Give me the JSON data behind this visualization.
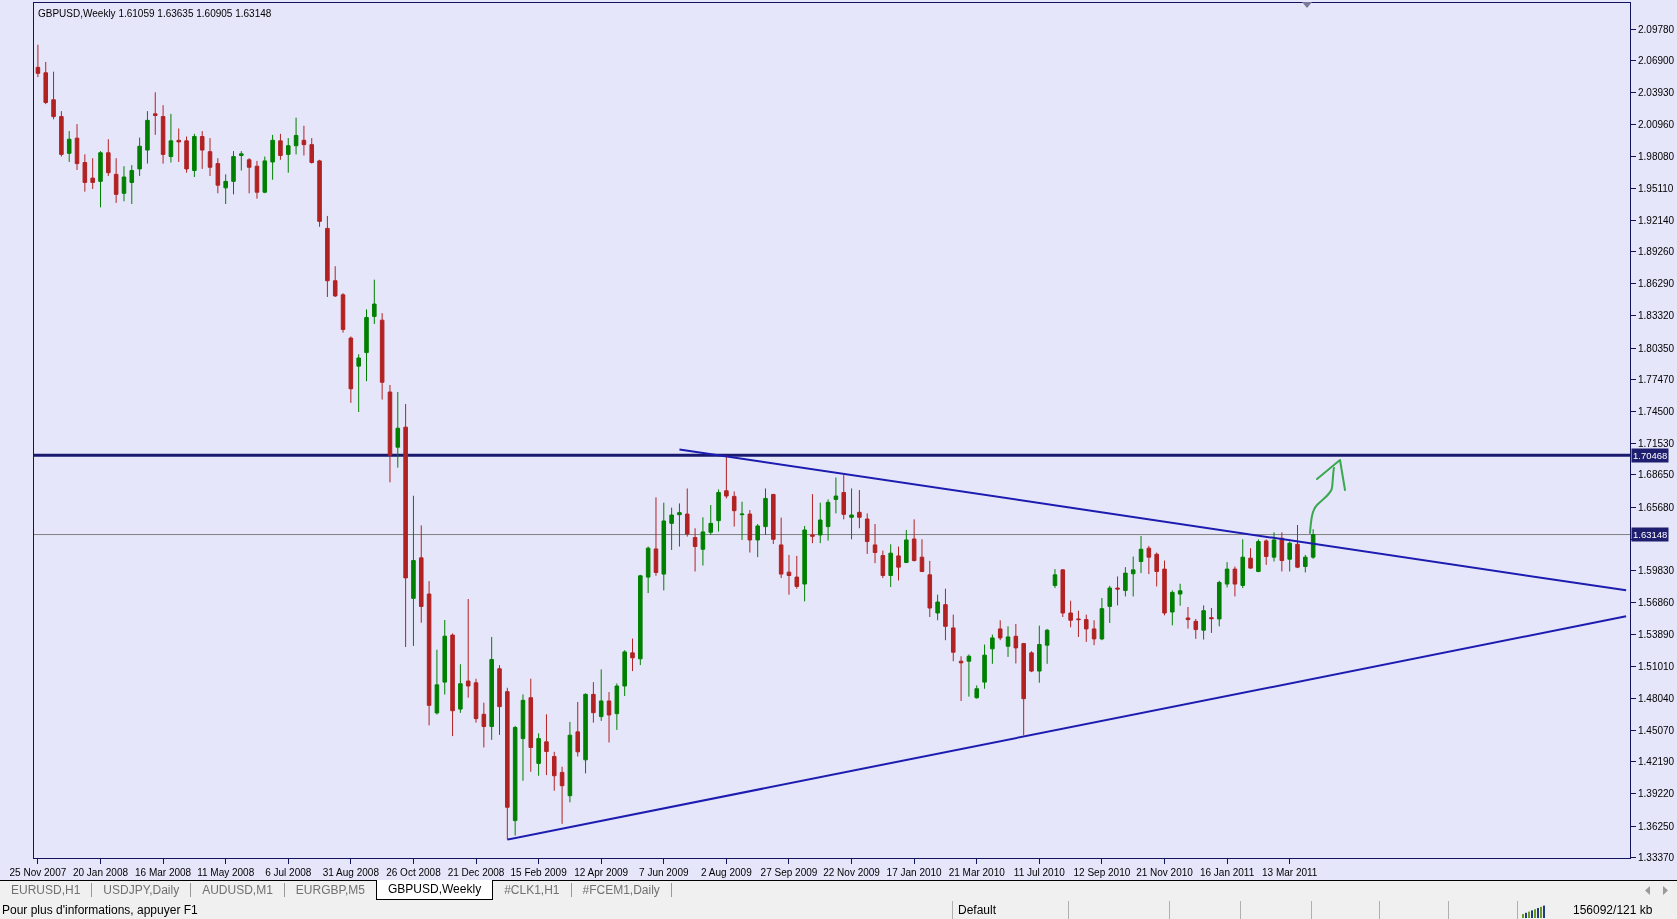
{
  "chart_data": {
    "type": "candlestick",
    "title": "GBPUSD,Weekly 1.61059 1.63635 1.60905 1.63148",
    "categories": [
      "25 Nov 2007",
      null,
      null,
      null,
      null,
      null,
      null,
      null,
      "20 Jan 2008",
      null,
      null,
      null,
      null,
      null,
      null,
      null,
      "16 Mar 2008",
      null,
      null,
      null,
      null,
      null,
      null,
      null,
      "11 May 2008",
      null,
      null,
      null,
      null,
      null,
      null,
      null,
      "6 Jul 2008",
      null,
      null,
      null,
      null,
      null,
      null,
      null,
      "31 Aug 2008",
      null,
      null,
      null,
      null,
      null,
      null,
      null,
      "26 Oct 2008",
      null,
      null,
      null,
      null,
      null,
      null,
      null,
      "21 Dec 2008",
      null,
      null,
      null,
      null,
      null,
      null,
      null,
      "15 Feb 2009",
      null,
      null,
      null,
      null,
      null,
      null,
      null,
      "12 Apr 2009",
      null,
      null,
      null,
      null,
      null,
      null,
      null,
      "7 Jun 2009",
      null,
      null,
      null,
      null,
      null,
      null,
      null,
      "2 Aug 2009",
      null,
      null,
      null,
      null,
      null,
      null,
      null,
      "27 Sep 2009",
      null,
      null,
      null,
      null,
      null,
      null,
      null,
      "22 Nov 2009",
      null,
      null,
      null,
      null,
      null,
      null,
      null,
      "17 Jan 2010",
      null,
      null,
      null,
      null,
      null,
      null,
      null,
      "21 Mar 2010",
      null,
      null,
      null,
      null,
      null,
      null,
      null,
      "11 Jul 2010",
      null,
      null,
      null,
      null,
      null,
      null,
      null,
      "12 Sep 2010",
      null,
      null,
      null,
      null,
      null,
      null,
      null,
      "21 Nov 2010",
      null,
      null,
      null,
      null,
      null,
      null,
      null,
      "16 Jan 2011",
      null,
      null,
      null,
      null,
      null,
      null,
      null,
      "13 Mar 2011",
      null,
      null,
      null,
      null,
      null,
      null,
      null,
      null,
      null,
      null,
      null,
      null,
      null,
      null,
      null,
      null,
      null,
      null,
      null,
      null,
      null,
      null,
      null,
      null,
      null,
      null,
      null,
      null,
      null,
      null,
      null,
      null,
      null,
      null,
      null,
      null,
      null,
      null,
      null,
      null,
      null,
      null,
      null
    ],
    "ohlc": [
      [
        2.0626,
        2.0835,
        2.0536,
        2.0571
      ],
      [
        2.0576,
        2.0676,
        2.0287,
        2.0302
      ],
      [
        2.0327,
        2.0586,
        2.0147,
        2.0172
      ],
      [
        2.0172,
        2.0222,
        1.9803,
        1.9823
      ],
      [
        1.9833,
        2.0038,
        1.9753,
        1.9963
      ],
      [
        1.9973,
        2.0102,
        1.9679,
        1.9738
      ],
      [
        1.9748,
        1.9823,
        1.9479,
        1.9564
      ],
      [
        1.9604,
        1.9788,
        1.9504,
        1.9564
      ],
      [
        1.9574,
        1.9853,
        1.9335,
        1.9838
      ],
      [
        1.9838,
        1.9963,
        1.9624,
        1.9654
      ],
      [
        1.9639,
        1.9788,
        1.9375,
        1.9454
      ],
      [
        1.9464,
        1.9714,
        1.939,
        1.9614
      ],
      [
        1.9564,
        1.9724,
        1.9365,
        1.9674
      ],
      [
        1.9689,
        1.9978,
        1.9624,
        1.9898
      ],
      [
        1.9863,
        2.0222,
        1.9738,
        2.0137
      ],
      [
        2.0197,
        2.0396,
        2.0003,
        2.0182
      ],
      [
        2.0172,
        2.0277,
        1.9738,
        1.9823
      ],
      [
        1.9803,
        2.0197,
        1.9748,
        1.9948
      ],
      [
        1.9953,
        2.0062,
        1.9753,
        1.9938
      ],
      [
        1.9948,
        1.9988,
        1.9654,
        1.9689
      ],
      [
        1.9674,
        2.0013,
        1.9614,
        1.9988
      ],
      [
        1.9988,
        2.0038,
        1.9689,
        1.9863
      ],
      [
        1.9848,
        1.9973,
        1.9624,
        1.9704
      ],
      [
        1.9738,
        1.9788,
        1.9464,
        1.9539
      ],
      [
        1.9514,
        1.9639,
        1.9365,
        1.9574
      ],
      [
        1.9574,
        1.9853,
        1.9454,
        1.9803
      ],
      [
        1.9813,
        1.9853,
        1.9674,
        1.9828
      ],
      [
        1.9773,
        1.9788,
        1.9464,
        1.9704
      ],
      [
        1.9714,
        1.9763,
        1.9414,
        1.9474
      ],
      [
        1.9474,
        1.9803,
        1.9464,
        1.9763
      ],
      [
        1.9753,
        2.0003,
        1.9589,
        1.9953
      ],
      [
        1.9948,
        2.0013,
        1.9773,
        1.9813
      ],
      [
        1.9823,
        1.9973,
        1.9654,
        1.9903
      ],
      [
        1.9903,
        2.0162,
        1.9823,
        1.9998
      ],
      [
        1.9953,
        2.0087,
        1.9813,
        1.9913
      ],
      [
        1.9913,
        1.9973,
        1.9738,
        1.9748
      ],
      [
        1.9763,
        1.9773,
        1.9155,
        1.9205
      ],
      [
        1.914,
        1.9255,
        1.8507,
        1.8657
      ],
      [
        1.8657,
        1.8791,
        1.8507,
        1.8517
      ],
      [
        1.8527,
        1.8542,
        1.8178,
        1.8208
      ],
      [
        1.8128,
        1.8143,
        1.753,
        1.766
      ],
      [
        1.7869,
        1.7979,
        1.7446,
        1.7944
      ],
      [
        1.7994,
        1.8393,
        1.773,
        1.8318
      ],
      [
        1.8328,
        1.8667,
        1.8258,
        1.8442
      ],
      [
        1.8293,
        1.8358,
        1.756,
        1.772
      ],
      [
        1.763,
        1.7695,
        1.6797,
        1.7047
      ],
      [
        1.7121,
        1.763,
        1.6932,
        1.7296
      ],
      [
        1.7306,
        1.752,
        1.5277,
        1.5915
      ],
      [
        1.5726,
        1.6673,
        1.5287,
        1.6075
      ],
      [
        1.61,
        1.6399,
        1.5501,
        1.5651
      ],
      [
        1.5766,
        1.5885,
        1.4554,
        1.4739
      ],
      [
        1.4669,
        1.5252,
        1.4654,
        1.4928
      ],
      [
        1.4953,
        1.5526,
        1.4839,
        1.5377
      ],
      [
        1.5387,
        1.5402,
        1.4455,
        1.4689
      ],
      [
        1.4704,
        1.5118,
        1.4669,
        1.4938
      ],
      [
        1.4963,
        1.572,
        1.4809,
        1.4917
      ],
      [
        1.4947,
        1.4984,
        1.4579,
        1.4616
      ],
      [
        1.4656,
        1.4763,
        1.435,
        1.4543
      ],
      [
        1.4543,
        1.537,
        1.442,
        1.5162
      ],
      [
        1.5076,
        1.511,
        1.4466,
        1.4727
      ],
      [
        1.4865,
        1.4901,
        1.3501,
        1.3798
      ],
      [
        1.3675,
        1.4549,
        1.3537,
        1.4534
      ],
      [
        1.4432,
        1.484,
        1.4043,
        1.4785
      ],
      [
        1.4809,
        1.4984,
        1.4126,
        1.435
      ],
      [
        1.4203,
        1.4481,
        1.4089,
        1.4432
      ],
      [
        1.4402,
        1.4656,
        1.4095,
        1.4313
      ],
      [
        1.4267,
        1.431,
        1.3951,
        1.4089
      ],
      [
        1.412,
        1.4172,
        1.3645,
        1.3997
      ],
      [
        1.3905,
        1.4586,
        1.3844,
        1.4463
      ],
      [
        1.4494,
        1.477,
        1.4267,
        1.431
      ],
      [
        1.4236,
        1.4849,
        1.4111,
        1.484
      ],
      [
        1.484,
        1.4953,
        1.4579,
        1.4671
      ],
      [
        1.4635,
        1.507,
        1.4595,
        1.4779
      ],
      [
        1.4779,
        1.4861,
        1.4396,
        1.465
      ],
      [
        1.4662,
        1.4941,
        1.4512,
        1.4917
      ],
      [
        1.4917,
        1.5248,
        1.4825,
        1.5232
      ],
      [
        1.5223,
        1.5355,
        1.5055,
        1.5177
      ],
      [
        1.5168,
        1.5943,
        1.511,
        1.5934
      ],
      [
        1.5922,
        1.6204,
        1.5775,
        1.6189
      ],
      [
        1.6182,
        1.6658,
        1.5934,
        1.5965
      ],
      [
        1.595,
        1.6609,
        1.5799,
        1.644
      ],
      [
        1.6418,
        1.6563,
        1.6173,
        1.6495
      ],
      [
        1.6498,
        1.6602,
        1.6204,
        1.6517
      ],
      [
        1.6504,
        1.674,
        1.6296,
        1.632
      ],
      [
        1.6287,
        1.6373,
        1.5974,
        1.6204
      ],
      [
        1.6179,
        1.6474,
        1.6029,
        1.6339
      ],
      [
        1.6336,
        1.6587,
        1.6311,
        1.6418
      ],
      [
        1.6443,
        1.6731,
        1.6342,
        1.6703
      ],
      [
        1.6719,
        1.7045,
        1.6648,
        1.667
      ],
      [
        1.6667,
        1.6713,
        1.6388,
        1.6535
      ],
      [
        1.6498,
        1.6618,
        1.6265,
        1.6504
      ],
      [
        1.6504,
        1.6541,
        1.6149,
        1.6265
      ],
      [
        1.6265,
        1.6412,
        1.6106,
        1.6394
      ],
      [
        1.6388,
        1.674,
        1.6311,
        1.6648
      ],
      [
        1.6685,
        1.669,
        1.6228,
        1.6271
      ],
      [
        1.6219,
        1.6471,
        1.5913,
        1.595
      ],
      [
        1.5968,
        1.6127,
        1.576,
        1.5937
      ],
      [
        1.5922,
        1.6118,
        1.5815,
        1.5836
      ],
      [
        1.5858,
        1.6394,
        1.5698,
        1.6357
      ],
      [
        1.6311,
        1.6688,
        1.6235,
        1.6299
      ],
      [
        1.6311,
        1.6609,
        1.6235,
        1.6449
      ],
      [
        1.6388,
        1.6639,
        1.6259,
        1.6612
      ],
      [
        1.6639,
        1.6841,
        1.651,
        1.667
      ],
      [
        1.6703,
        1.6863,
        1.6455,
        1.6501
      ],
      [
        1.6474,
        1.674,
        1.6271,
        1.6495
      ],
      [
        1.652,
        1.6725,
        1.6373,
        1.6474
      ],
      [
        1.6458,
        1.651,
        1.6136,
        1.625
      ],
      [
        1.6219,
        1.6412,
        1.6051,
        1.6149
      ],
      [
        1.6121,
        1.6167,
        1.5913,
        1.5937
      ],
      [
        1.5937,
        1.6225,
        1.583,
        1.6143
      ],
      [
        1.6118,
        1.6204,
        1.5891,
        1.6014
      ],
      [
        1.6057,
        1.6357,
        1.6051,
        1.6265
      ],
      [
        1.6274,
        1.6455,
        1.6066,
        1.6075
      ],
      [
        1.6106,
        1.6271,
        1.5968,
        1.5974
      ],
      [
        1.5943,
        1.6072,
        1.5554,
        1.5637
      ],
      [
        1.5591,
        1.576,
        1.5524,
        1.5692
      ],
      [
        1.5668,
        1.5815,
        1.534,
        1.5468
      ],
      [
        1.5453,
        1.5576,
        1.5146,
        1.5229
      ],
      [
        1.5146,
        1.5192,
        1.4779,
        1.5131
      ],
      [
        1.5146,
        1.5208,
        1.4819,
        1.5192
      ],
      [
        1.4809,
        1.4923,
        1.48,
        1.4892
      ],
      [
        1.4953,
        1.53,
        1.4892,
        1.5202
      ],
      [
        1.526,
        1.5392,
        1.5122,
        1.5361
      ],
      [
        1.5444,
        1.5524,
        1.534,
        1.5361
      ],
      [
        1.5284,
        1.5468,
        1.5186,
        1.537
      ],
      [
        1.5376,
        1.549,
        1.5125,
        1.5269
      ],
      [
        1.5309,
        1.5315,
        1.4463,
        1.48
      ],
      [
        1.5223,
        1.5238,
        1.5045,
        1.5055
      ],
      [
        1.5055,
        1.5474,
        1.4947,
        1.53
      ],
      [
        1.5294,
        1.5444,
        1.5122,
        1.5432
      ],
      [
        1.5845,
        1.5996,
        1.5821,
        1.5943
      ],
      [
        1.5989,
        1.5996,
        1.5554,
        1.5591
      ],
      [
        1.5591,
        1.5704,
        1.5459,
        1.5524
      ],
      [
        1.5536,
        1.5612,
        1.537,
        1.553
      ],
      [
        1.553,
        1.5576,
        1.5324,
        1.5444
      ],
      [
        1.5444,
        1.5524,
        1.5294,
        1.5352
      ],
      [
        1.5352,
        1.5729,
        1.534,
        1.5631
      ],
      [
        1.5652,
        1.5842,
        1.5499,
        1.5821
      ],
      [
        1.5821,
        1.5928,
        1.5661,
        1.5812
      ],
      [
        1.5799,
        1.6014,
        1.5744,
        1.5959
      ],
      [
        1.5953,
        1.6112,
        1.5744,
        1.5989
      ],
      [
        1.6066,
        1.6302,
        1.5959,
        1.6179
      ],
      [
        1.6189,
        1.621,
        1.595,
        1.6106
      ],
      [
        1.6133,
        1.6149,
        1.5836,
        1.5974
      ],
      [
        1.5996,
        1.6075,
        1.5569,
        1.5591
      ],
      [
        1.56,
        1.5799,
        1.5477,
        1.5781
      ],
      [
        1.5766,
        1.5861,
        1.5658,
        1.5796
      ],
      [
        1.5545,
        1.5646,
        1.5447,
        1.553
      ],
      [
        1.5514,
        1.5536,
        1.5352,
        1.5438
      ],
      [
        1.5432,
        1.5661,
        1.5346,
        1.5612
      ],
      [
        1.5548,
        1.5637,
        1.5407,
        1.5539
      ],
      [
        1.5536,
        1.5888,
        1.5468,
        1.5873
      ],
      [
        1.5858,
        1.606,
        1.5827,
        1.5996
      ],
      [
        1.5996,
        1.602,
        1.5744,
        1.5858
      ],
      [
        1.5845,
        1.6271,
        1.5821,
        1.6106
      ],
      [
        1.6097,
        1.6189,
        1.5999,
        1.6005
      ],
      [
        1.5974,
        1.6271,
        1.5968,
        1.625
      ],
      [
        1.6256,
        1.6271,
        1.6035,
        1.6112
      ],
      [
        1.6106,
        1.6336,
        1.6066,
        1.6265
      ],
      [
        1.6281,
        1.6336,
        1.5974,
        1.6075
      ],
      [
        1.6087,
        1.625,
        1.5974,
        1.6235
      ],
      [
        1.6225,
        1.6403,
        1.6005,
        1.6014
      ],
      [
        1.602,
        1.6127,
        1.5965,
        1.6106
      ],
      [
        1.61059,
        1.63635,
        1.60905,
        1.63148
      ],
      null,
      null,
      null,
      null,
      null,
      null,
      null,
      null,
      null,
      null,
      null,
      null,
      null,
      null,
      null,
      null,
      null,
      null,
      null,
      null,
      null,
      null,
      null,
      null,
      null,
      null,
      null,
      null,
      null,
      null,
      null,
      null,
      null,
      null,
      null,
      null,
      null,
      null,
      null,
      null
    ],
    "colors": [
      "#b22222",
      "#b22222",
      "#b22222",
      "#b22222",
      "#008000",
      "#b22222",
      "#b22222",
      "#b22222",
      "#008000",
      "#b22222",
      "#b22222",
      "#008000",
      "#008000",
      "#008000",
      "#008000",
      "#b22222",
      "#b22222",
      "#008000",
      "#b22222",
      "#b22222",
      "#008000",
      "#b22222",
      "#b22222",
      "#b22222",
      "#008000",
      "#008000",
      "#008000",
      "#b22222",
      "#b22222",
      "#008000",
      "#008000",
      "#b22222",
      "#008000",
      "#008000",
      "#b22222",
      "#b22222",
      "#b22222",
      "#b22222",
      "#b22222",
      "#b22222",
      "#b22222",
      "#008000",
      "#008000",
      "#008000",
      "#b22222",
      "#b22222",
      "#008000",
      "#b22222",
      "#008000",
      "#b22222",
      "#b22222",
      "#008000",
      "#008000",
      "#b22222",
      "#008000",
      "#b22222",
      "#b22222",
      "#b22222",
      "#008000",
      "#b22222",
      "#b22222",
      "#008000",
      "#008000",
      "#b22222",
      "#008000",
      "#b22222",
      "#b22222",
      "#b22222",
      "#008000",
      "#b22222",
      "#008000",
      "#b22222",
      "#008000",
      "#b22222",
      "#008000",
      "#008000",
      "#b22222",
      "#008000",
      "#008000",
      "#b22222",
      "#008000",
      "#008000",
      "#008000",
      "#b22222",
      "#b22222",
      "#008000",
      "#008000",
      "#008000",
      "#b22222",
      "#b22222",
      "#008000",
      "#b22222",
      "#008000",
      "#008000",
      "#b22222",
      "#b22222",
      "#b22222",
      "#b22222",
      "#008000",
      "#b22222",
      "#008000",
      "#008000",
      "#008000",
      "#b22222",
      "#008000",
      "#b22222",
      "#b22222",
      "#b22222",
      "#b22222",
      "#008000",
      "#b22222",
      "#008000",
      "#b22222",
      "#b22222",
      "#b22222",
      "#008000",
      "#b22222",
      "#b22222",
      "#b22222",
      "#008000",
      "#008000",
      "#008000",
      "#008000",
      "#b22222",
      "#008000",
      "#b22222",
      "#b22222",
      "#b22222",
      "#008000",
      "#008000",
      "#008000",
      "#b22222",
      "#b22222",
      "#b22222",
      "#b22222",
      "#b22222",
      "#008000",
      "#008000",
      "#b22222",
      "#008000",
      "#008000",
      "#008000",
      "#b22222",
      "#b22222",
      "#b22222",
      "#008000",
      "#008000",
      "#b22222",
      "#b22222",
      "#008000",
      "#b22222",
      "#008000",
      "#008000",
      "#b22222",
      "#008000",
      "#b22222",
      "#008000",
      "#b22222",
      "#008000",
      "#b22222",
      "#008000",
      "#b22222",
      "#008000",
      "#008000",
      null,
      null,
      null,
      null,
      null,
      null,
      null,
      null,
      null,
      null,
      null,
      null,
      null,
      null,
      null,
      null,
      null,
      null,
      null,
      null,
      null,
      null,
      null,
      null,
      null,
      null,
      null,
      null,
      null,
      null,
      null,
      null,
      null,
      null,
      null,
      null,
      null,
      null,
      null,
      null
    ],
    "series": [
      {
        "type": "line",
        "color": "#1c1cb0",
        "values": [
          null,
          null,
          null,
          null,
          null,
          null,
          null,
          null,
          null,
          null,
          null,
          null,
          null,
          null,
          null,
          null,
          null,
          null,
          null,
          null,
          null,
          null,
          null,
          null,
          null,
          null,
          null,
          null,
          null,
          null,
          null,
          null,
          null,
          null,
          null,
          null,
          null,
          null,
          null,
          null,
          null,
          null,
          null,
          null,
          null,
          null,
          null,
          null,
          null,
          null,
          null,
          null,
          null,
          null,
          null,
          null,
          null,
          null,
          null,
          null,
          null,
          null,
          null,
          null,
          null,
          null,
          null,
          null,
          null,
          null,
          null,
          null,
          null,
          null,
          null,
          null,
          null,
          null,
          null,
          null,
          null,
          null,
          1.71,
          null,
          null,
          null,
          null,
          null,
          null,
          null,
          null,
          null,
          null,
          null,
          null,
          null,
          null,
          null,
          null,
          null,
          null,
          null,
          null,
          null,
          null,
          null,
          null,
          null,
          null,
          null,
          null,
          null,
          null,
          null,
          null,
          null,
          null,
          null,
          null,
          null,
          null,
          null,
          null,
          null,
          null,
          null,
          null,
          null,
          null,
          null,
          null,
          null,
          null,
          null,
          null,
          null,
          null,
          null,
          null,
          null,
          null,
          null,
          null,
          null,
          null,
          null,
          null,
          null,
          null,
          null,
          null,
          null,
          null,
          null,
          null,
          null,
          null,
          null,
          null,
          null,
          null,
          null,
          null,
          null,
          null,
          null,
          null,
          null,
          null,
          null,
          null,
          null,
          null,
          null,
          null,
          null,
          null,
          null,
          null,
          null,
          null,
          null,
          null,
          null,
          null,
          null,
          null,
          null,
          null,
          null,
          null,
          null,
          null,
          null,
          null,
          null,
          null,
          null,
          null,
          null,
          null,
          null,
          null,
          1.58
        ]
      },
      {
        "type": "line",
        "color": "#1c1cb0",
        "values": [
          null,
          null,
          null,
          null,
          null,
          null,
          null,
          null,
          null,
          null,
          null,
          null,
          null,
          null,
          null,
          null,
          null,
          null,
          null,
          null,
          null,
          null,
          null,
          null,
          null,
          null,
          null,
          null,
          null,
          null,
          null,
          null,
          null,
          null,
          null,
          null,
          null,
          null,
          null,
          null,
          null,
          null,
          null,
          null,
          null,
          null,
          null,
          null,
          null,
          null,
          null,
          null,
          null,
          null,
          null,
          null,
          null,
          null,
          null,
          null,
          1.35,
          null,
          null,
          null,
          null,
          null,
          null,
          null,
          null,
          null,
          null,
          null,
          null,
          null,
          null,
          null,
          null,
          null,
          null,
          null,
          null,
          null,
          null,
          null,
          null,
          null,
          null,
          null,
          null,
          null,
          null,
          null,
          null,
          null,
          null,
          null,
          null,
          null,
          null,
          null,
          null,
          null,
          null,
          null,
          null,
          null,
          null,
          null,
          null,
          null,
          null,
          null,
          null,
          null,
          null,
          null,
          null,
          null,
          null,
          null,
          null,
          null,
          null,
          null,
          null,
          null,
          null,
          null,
          null,
          null,
          null,
          null,
          null,
          null,
          null,
          null,
          null,
          null,
          null,
          null,
          null,
          null,
          null,
          null,
          null,
          null,
          null,
          null,
          null,
          null,
          null,
          null,
          null,
          null,
          null,
          null,
          null,
          null,
          null,
          null,
          null,
          null,
          null,
          null,
          null,
          null,
          null,
          null,
          null,
          null,
          null,
          null,
          null,
          null,
          null,
          null,
          null,
          null,
          null,
          null,
          null,
          null,
          null,
          null,
          null,
          null,
          null,
          null,
          null,
          null,
          null,
          null,
          null,
          null,
          null,
          null,
          null,
          null,
          null,
          null,
          null,
          null,
          null,
          1.556
        ]
      }
    ],
    "ylim": [
      1.333,
      2.122
    ],
    "yticks": [
      {
        "value": 1.3337,
        "label": "1.33370"
      },
      {
        "value": 1.3625,
        "label": "1.36250"
      },
      {
        "value": 1.3922,
        "label": "1.39220"
      },
      {
        "value": 1.4219,
        "label": "1.42190"
      },
      {
        "value": 1.4507,
        "label": "1.45070"
      },
      {
        "value": 1.4804,
        "label": "1.48040"
      },
      {
        "value": 1.5101,
        "label": "1.51010"
      },
      {
        "value": 1.5389,
        "label": "1.53890"
      },
      {
        "value": 1.5686,
        "label": "1.56860"
      },
      {
        "value": 1.5983,
        "label": "1.59830"
      },
      {
        "value": 1.6271,
        "label": null
      },
      {
        "value": 1.6568,
        "label": "1.65680"
      },
      {
        "value": 1.6865,
        "label": "1.68650"
      },
      {
        "value": 1.7153,
        "label": "1.71530"
      },
      {
        "value": 1.745,
        "label": "1.74500"
      },
      {
        "value": 1.7747,
        "label": "1.77470"
      },
      {
        "value": 1.8035,
        "label": "1.80350"
      },
      {
        "value": 1.8332,
        "label": "1.83320"
      },
      {
        "value": 1.8629,
        "label": "1.86290"
      },
      {
        "value": 1.8926,
        "label": "1.89260"
      },
      {
        "value": 1.9214,
        "label": "1.92140"
      },
      {
        "value": 1.9511,
        "label": "1.95110"
      },
      {
        "value": 1.9808,
        "label": "1.98080"
      },
      {
        "value": 2.0096,
        "label": "2.00960"
      },
      {
        "value": 2.0393,
        "label": "2.03930"
      },
      {
        "value": 2.069,
        "label": "2.06900"
      },
      {
        "value": 2.0978,
        "label": "2.09780"
      }
    ],
    "ref_lines": [
      {
        "axis": "y",
        "value": 1.70468,
        "label": "1.70468",
        "color": "#191970",
        "line_style": "solid"
      },
      {
        "axis": "y",
        "value": 1.63148,
        "label": "1.63148",
        "color": "#808080",
        "line_style": "solid"
      }
    ],
    "annotations": [
      "EURUSD,H1",
      "USDJPY,Daily",
      "AUDUSD,M1",
      "EURGBP,M5",
      "GBPUSD,Weekly",
      "#CLK1,H1",
      "#FCEM1,Daily",
      "Pour plus d'informations, appuyer F1",
      "Default",
      "156092/121 kb"
    ]
  }
}
